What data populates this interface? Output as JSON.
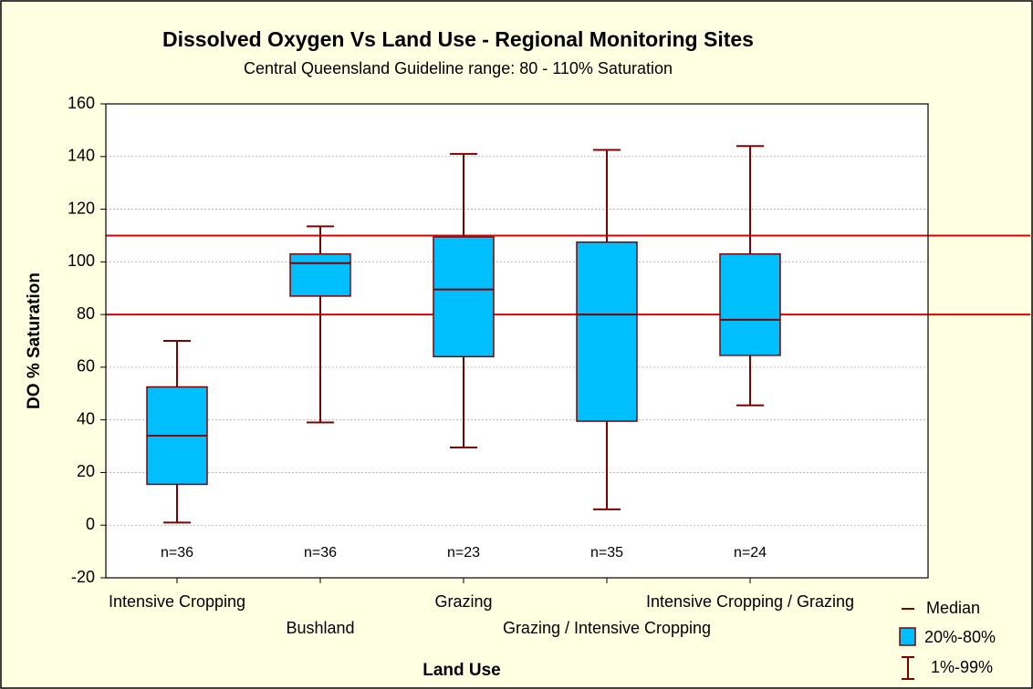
{
  "chart_data": {
    "type": "box",
    "title": "Dissolved Oxygen Vs Land Use - Regional Monitoring Sites",
    "subtitle": "Central Queensland Guideline range: 80 - 110% Saturation",
    "x_label": "Land Use",
    "y_label": "DO % Saturation",
    "categories": [
      "Intensive Cropping",
      "Bushland",
      "Grazing",
      "Grazing / Intensive Cropping",
      "Intensive Cropping / Grazing"
    ],
    "low": [
      1,
      39,
      29.5,
      6,
      45.5
    ],
    "q1": [
      15.5,
      87,
      64,
      39.5,
      64.5
    ],
    "median": [
      34,
      99.5,
      89.5,
      80,
      78
    ],
    "q3": [
      52.5,
      103,
      109.5,
      107.5,
      103
    ],
    "high": [
      70,
      113.5,
      141,
      142.5,
      144
    ],
    "n_labels": [
      "n=36",
      "n=36",
      "n=23",
      "n=35",
      "n=24"
    ],
    "box_color": "#00bfff",
    "line_color": "#800000",
    "reference_lines": [
      80,
      110
    ],
    "reference_color": "#e00000",
    "ylim": [
      -20,
      160
    ],
    "yticks": [
      -20,
      0,
      20,
      40,
      60,
      80,
      100,
      120,
      140,
      160
    ],
    "grid": true,
    "legend": {
      "median": "Median",
      "box": "20%-80%",
      "whisker": "1%-99%"
    },
    "legend_position": "lower right"
  }
}
